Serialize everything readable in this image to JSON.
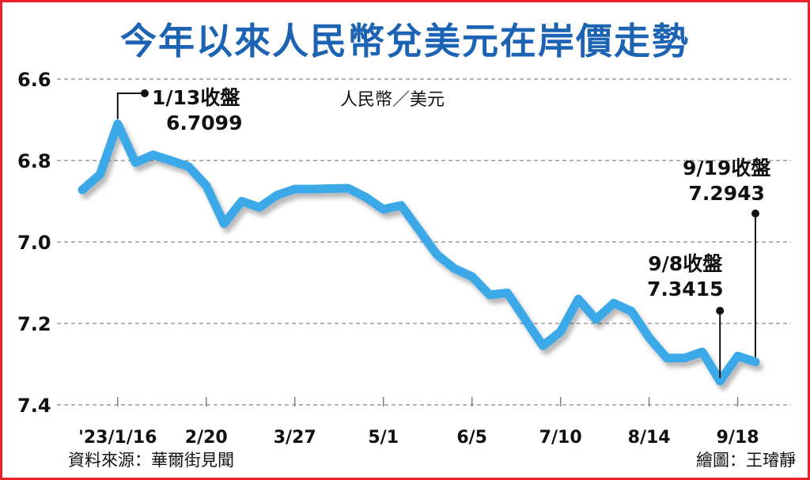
{
  "title": "今年以來人民幣兌美元在岸價走勢",
  "unit_label": "人民幣／美元",
  "source": "資料來源：華爾街見聞",
  "credit": "繪圖：王璿靜",
  "annotations": [
    {
      "line1": "1/13收盤",
      "line2": "6.7099"
    },
    {
      "line1": "9/8收盤",
      "line2": "7.3415"
    },
    {
      "line1": "9/19收盤",
      "line2": "7.2943"
    }
  ],
  "colors": {
    "line": "#3aa8e8",
    "title": "#1d63b3",
    "border": "#e8232b",
    "grid": "#9a9a9a"
  },
  "chart_data": {
    "type": "line",
    "title": "今年以來人民幣兌美元在岸價走勢",
    "xlabel": "",
    "ylabel": "人民幣／美元",
    "ylim": [
      6.6,
      7.4
    ],
    "y_inverted": true,
    "yticks": [
      "6.6",
      "6.8",
      "7.0",
      "7.2",
      "7.4"
    ],
    "xticks": [
      {
        "label": "'23/1/16",
        "idx": 2
      },
      {
        "label": "2/20",
        "idx": 7
      },
      {
        "label": "3/27",
        "idx": 12
      },
      {
        "label": "5/1",
        "idx": 17
      },
      {
        "label": "6/5",
        "idx": 22
      },
      {
        "label": "7/10",
        "idx": 27
      },
      {
        "label": "8/14",
        "idx": 32
      },
      {
        "label": "9/18",
        "idx": 37
      }
    ],
    "grid": true,
    "series": [
      {
        "values": [
          6.872,
          6.834,
          6.71,
          6.805,
          6.786,
          6.8,
          6.815,
          6.862,
          6.955,
          6.9,
          6.915,
          6.885,
          6.87,
          6.87,
          6.869,
          6.868,
          6.89,
          6.92,
          6.91,
          6.97,
          7.03,
          7.065,
          7.085,
          7.13,
          7.125,
          7.19,
          7.255,
          7.22,
          7.14,
          7.19,
          7.15,
          7.17,
          7.235,
          7.285,
          7.285,
          7.27,
          7.3415,
          7.28,
          7.2943
        ]
      }
    ]
  }
}
